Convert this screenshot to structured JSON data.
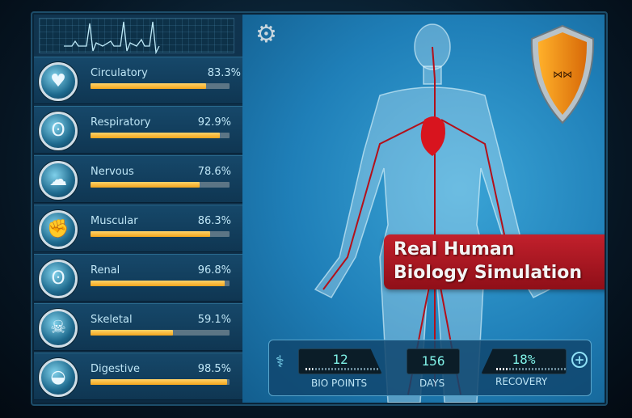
{
  "systems": [
    {
      "label": "Circulatory",
      "percent": "83.3%",
      "value": 83.3,
      "icon": "heart-icon"
    },
    {
      "label": "Respiratory",
      "percent": "92.9%",
      "value": 92.9,
      "icon": "lungs-icon"
    },
    {
      "label": "Nervous",
      "percent": "78.6%",
      "value": 78.6,
      "icon": "brain-icon"
    },
    {
      "label": "Muscular",
      "percent": "86.3%",
      "value": 86.3,
      "icon": "muscle-icon"
    },
    {
      "label": "Renal",
      "percent": "96.8%",
      "value": 96.8,
      "icon": "kidney-icon"
    },
    {
      "label": "Skeletal",
      "percent": "59.1%",
      "value": 59.1,
      "icon": "skeleton-icon"
    },
    {
      "label": "Digestive",
      "percent": "98.5%",
      "value": 98.5,
      "icon": "stomach-icon"
    }
  ],
  "banner": {
    "line1": "Real Human",
    "line2": "Biology Simulation"
  },
  "hud": {
    "bio_points": "12",
    "bio_points_label": "BIO POINTS",
    "days": "156",
    "days_label": "DAYS",
    "recovery": "18%",
    "recovery_label": "RECOVERY",
    "recovery_value": 18
  },
  "colors": {
    "accent": "#f3a51c",
    "banner": "#b01c26",
    "display": "#7ff0e6"
  }
}
